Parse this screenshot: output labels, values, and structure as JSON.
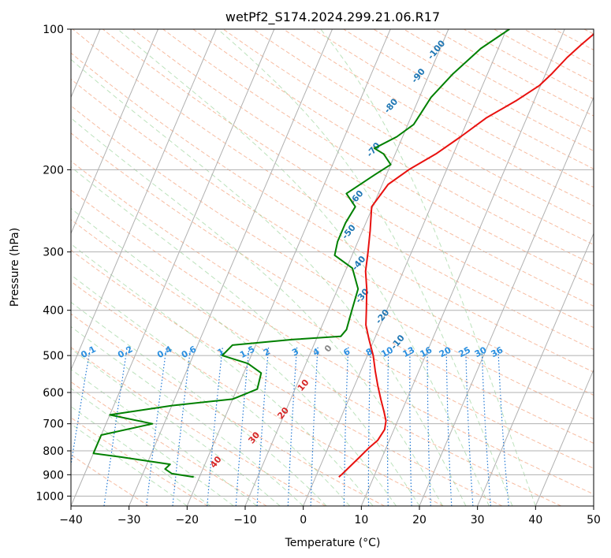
{
  "chart_data": {
    "type": "line",
    "title": "wetPf2_S174.2024.299.21.06.R17",
    "xlabel": "Temperature (°C)",
    "ylabel": "Pressure (hPa)",
    "xlim": [
      -40,
      50
    ],
    "ylim": [
      1050,
      100
    ],
    "y_scale": "log",
    "grid": true,
    "x_ticks": [
      -40,
      -30,
      -20,
      -10,
      0,
      10,
      20,
      30,
      40,
      50
    ],
    "x_tick_labels": [
      "−40",
      "−30",
      "−20",
      "−10",
      "0",
      "10",
      "20",
      "30",
      "40",
      "50"
    ],
    "y_ticks": [
      100,
      200,
      300,
      400,
      500,
      600,
      700,
      800,
      900,
      1000
    ],
    "y_tick_labels": [
      "100",
      "200",
      "300",
      "400",
      "500",
      "600",
      "700",
      "800",
      "900",
      "1000"
    ],
    "series": [
      {
        "color": "#e8110f",
        "points": [
          [
            4,
            910
          ],
          [
            4.3,
            900
          ],
          [
            5,
            870
          ],
          [
            6,
            830
          ],
          [
            7,
            790
          ],
          [
            8,
            760
          ],
          [
            8.4,
            720
          ],
          [
            8,
            690
          ],
          [
            7,
            660
          ],
          [
            5.5,
            620
          ],
          [
            4,
            580
          ],
          [
            2.5,
            540
          ],
          [
            1,
            500
          ],
          [
            -1,
            460
          ],
          [
            -2.5,
            430
          ],
          [
            -3.5,
            400
          ],
          [
            -5,
            360
          ],
          [
            -6.5,
            330
          ],
          [
            -7.5,
            300
          ],
          [
            -8.7,
            270
          ],
          [
            -10.2,
            240
          ],
          [
            -9,
            215
          ],
          [
            -6.5,
            200
          ],
          [
            -3,
            185
          ],
          [
            0,
            170
          ],
          [
            3,
            155
          ],
          [
            7,
            142
          ],
          [
            9.8,
            132
          ],
          [
            11,
            125
          ],
          [
            12.5,
            115
          ],
          [
            14,
            108
          ],
          [
            16,
            100
          ]
        ]
      },
      {
        "color": "#008000",
        "points": [
          [
            -21,
            910
          ],
          [
            -25,
            895
          ],
          [
            -26.5,
            875
          ],
          [
            -26,
            855
          ],
          [
            -35,
            825
          ],
          [
            -40,
            810
          ],
          [
            -40,
            740
          ],
          [
            -32,
            700
          ],
          [
            -40,
            670
          ],
          [
            -30,
            640
          ],
          [
            -20,
            620
          ],
          [
            -16.5,
            590
          ],
          [
            -17,
            545
          ],
          [
            -20,
            520
          ],
          [
            -25,
            500
          ],
          [
            -24,
            475
          ],
          [
            -14,
            462
          ],
          [
            -6,
            455
          ],
          [
            -5.5,
            440
          ],
          [
            -6,
            400
          ],
          [
            -6.5,
            360
          ],
          [
            -9,
            325
          ],
          [
            -13,
            305
          ],
          [
            -13.5,
            285
          ],
          [
            -13.5,
            260
          ],
          [
            -13,
            240
          ],
          [
            -15.5,
            225
          ],
          [
            -12,
            205
          ],
          [
            -10,
            195
          ],
          [
            -12,
            185
          ],
          [
            -14,
            180
          ],
          [
            -11,
            170
          ],
          [
            -9,
            160
          ],
          [
            -8.5,
            150
          ],
          [
            -8,
            140
          ],
          [
            -6,
            125
          ],
          [
            -3,
            110
          ],
          [
            0.5,
            100
          ]
        ]
      }
    ],
    "mixing_ratio_labels": [
      "0.1",
      "0.2",
      "0.4",
      "0.6",
      "1",
      "1.5",
      "2",
      "3",
      "4",
      "6",
      "8",
      "10",
      "13",
      "16",
      "20",
      "25",
      "30",
      "36"
    ],
    "moist_adiabat_labels": [
      "-100",
      "-90",
      "-80",
      "-70",
      "-60",
      "-50",
      "-40",
      "-30",
      "-20",
      "-10",
      "0",
      "10",
      "20",
      "30",
      "40"
    ]
  }
}
